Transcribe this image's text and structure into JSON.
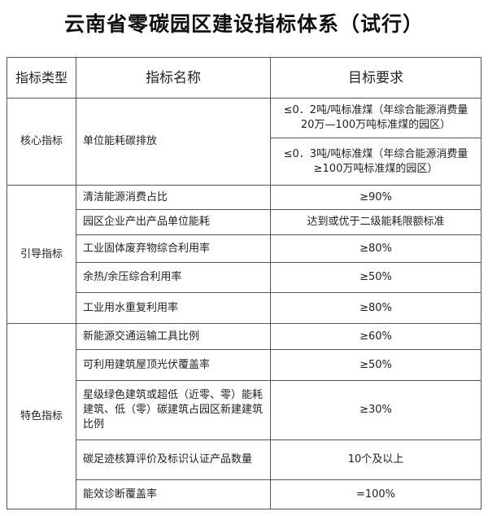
{
  "title": "云南省零碳园区建设指标体系（试行）",
  "headers": [
    "指标类型",
    "指标名称",
    "目标要求"
  ],
  "groups": [
    {
      "type": "核心指标",
      "rows": [
        {
          "name": "单位能耗碳排放",
          "targets": [
            "≤0．2吨/吨标准煤（年综合能源消费量20万—100万吨标准煤的园区）",
            "≤0．3吨/吨标准煤（年综合能源消费量≥100万吨标准煤的园区）"
          ]
        }
      ]
    },
    {
      "type": "引导指标",
      "rows": [
        {
          "name": "清洁能源消费占比",
          "target": "≥90%"
        },
        {
          "name": "园区企业产出产品单位能耗",
          "target": "达到或优于二级能耗限额标准"
        },
        {
          "name": "工业固体废弃物综合利用率",
          "target": "≥80%"
        },
        {
          "name": "余热/余压综合利用率",
          "target": "≥50%"
        },
        {
          "name": "工业用水重复利用率",
          "target": "≥80%"
        }
      ]
    },
    {
      "type": "特色指标",
      "rows": [
        {
          "name": "新能源交通运输工具比例",
          "target": "≥60%"
        },
        {
          "name": "可利用建筑屋顶光伏覆盖率",
          "target": "≥50%"
        },
        {
          "name": "星级绿色建筑或超低（近零、零）能耗建筑、低（零）碳建筑占园区新建建筑比例",
          "target": "≥30%"
        },
        {
          "name": "碳足迹核算评价及标识认证产品数量",
          "target": "10个及以上"
        },
        {
          "name": "能效诊断覆盖率",
          "target": "=100%"
        }
      ]
    }
  ]
}
